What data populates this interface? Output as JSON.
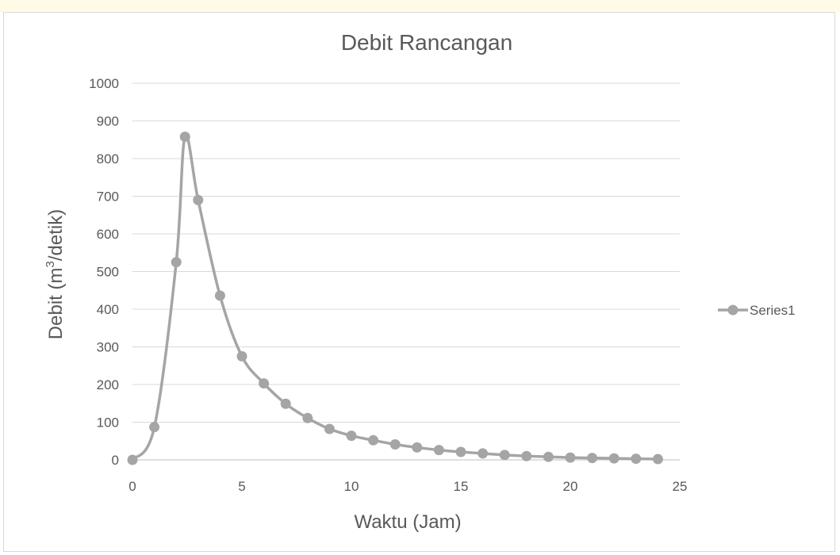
{
  "chart_data": {
    "type": "line",
    "title": "Debit Rancangan",
    "xlabel": "Waktu (Jam)",
    "ylabel_parts": [
      "Debit (m",
      "3",
      "/detik)"
    ],
    "xlim": [
      0,
      25
    ],
    "ylim": [
      0,
      1000
    ],
    "xticks": [
      "0",
      "5",
      "10",
      "15",
      "20",
      "25"
    ],
    "yticks": [
      "0",
      "100",
      "200",
      "300",
      "400",
      "500",
      "600",
      "700",
      "800",
      "900",
      "1000"
    ],
    "grid": true,
    "legend_position": "right",
    "series": [
      {
        "name": "Series1",
        "color": "#a5a5a5",
        "x": [
          0,
          1,
          2,
          2.4,
          3,
          4,
          5,
          6,
          7,
          8,
          9,
          10,
          11,
          12,
          13,
          14,
          15,
          16,
          17,
          18,
          19,
          20,
          21,
          22,
          23,
          24
        ],
        "y": [
          0,
          87,
          525,
          858,
          690,
          436,
          275,
          203,
          149,
          111,
          82,
          64,
          52,
          41,
          33,
          26,
          21,
          17,
          13,
          10,
          8,
          6,
          5,
          4,
          3,
          2
        ]
      }
    ]
  }
}
